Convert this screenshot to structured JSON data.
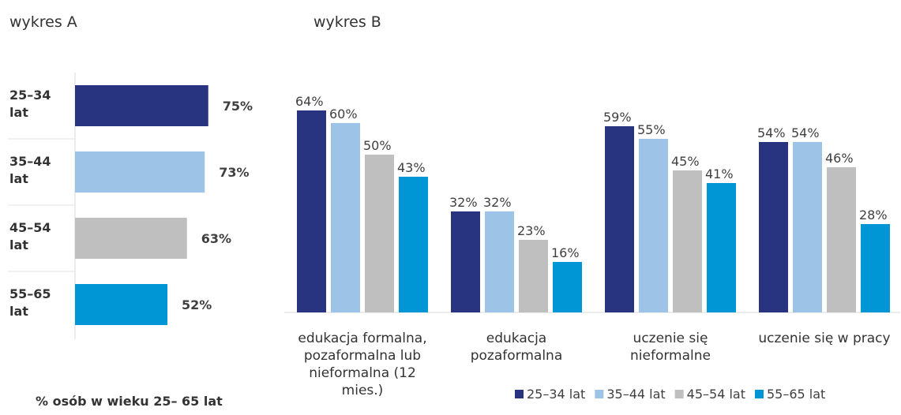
{
  "chart_data": [
    {
      "type": "barh",
      "title": "wykres A",
      "categories": [
        "25–34 lat",
        "35–44 lat",
        "45–54 lat",
        "55–65 lat"
      ],
      "values": [
        75,
        73,
        63,
        52
      ],
      "value_labels": [
        "75%",
        "73%",
        "63%",
        "52%"
      ],
      "colors": [
        "#283480",
        "#9dc3e6",
        "#bfbfbf",
        "#0096d6"
      ],
      "caption": "% osób w wieku 25– 65 lat"
    },
    {
      "type": "bar",
      "title": "wykres B",
      "categories": [
        "edukacja formalna, pozaformalna lub nieformalna (12 mies.)",
        "edukacja pozaformalna",
        "uczenie się nieformalne",
        "uczenie się w pracy"
      ],
      "series": [
        {
          "name": "25–34 lat",
          "color": "#283480",
          "values": [
            64,
            32,
            59,
            54
          ],
          "value_labels": [
            "64%",
            "32%",
            "59%",
            "54%"
          ]
        },
        {
          "name": "35–44 lat",
          "color": "#9dc3e6",
          "values": [
            60,
            32,
            55,
            54
          ],
          "value_labels": [
            "60%",
            "32%",
            "55%",
            "54%"
          ]
        },
        {
          "name": "45–54 lat",
          "color": "#bfbfbf",
          "values": [
            50,
            23,
            45,
            46
          ],
          "value_labels": [
            "50%",
            "23%",
            "45%",
            "46%"
          ]
        },
        {
          "name": "55–65 lat",
          "color": "#0096d6",
          "values": [
            43,
            16,
            41,
            28
          ],
          "value_labels": [
            "43%",
            "16%",
            "41%",
            "28%"
          ]
        }
      ],
      "legend": "bottom"
    }
  ]
}
